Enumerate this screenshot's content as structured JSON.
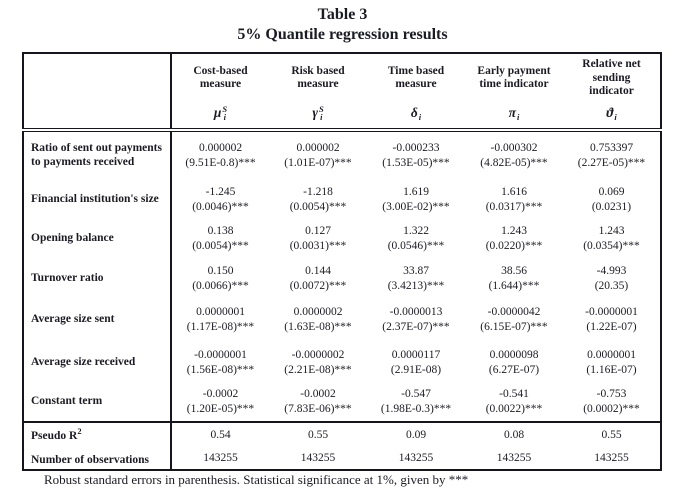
{
  "page": {
    "title_line1": "Table 3",
    "title_line2": "5% Quantile regression results",
    "footnote": "Robust standard errors in parenthesis. Statistical significance at 1%, given by ***"
  },
  "columns": [
    {
      "name": "Cost-based measure",
      "sym": "μ",
      "sup": "S",
      "sub": "i"
    },
    {
      "name": "Risk based measure",
      "sym": "γ",
      "sup": "S",
      "sub": "i"
    },
    {
      "name": "Time based measure",
      "sym": "δ",
      "sup": "",
      "sub": "i"
    },
    {
      "name": "Early payment time indicator",
      "sym": "π",
      "sup": "",
      "sub": "i"
    },
    {
      "name": "Relative net sending indicator",
      "sym": "ϑ",
      "sup": "",
      "sub": "i"
    }
  ],
  "rows": [
    {
      "label": "Ratio of sent out payments to payments received",
      "cells": [
        {
          "v": "0.000002",
          "se": "(9.51E-0.8)***"
        },
        {
          "v": "0.000002",
          "se": "(1.01E-07)***"
        },
        {
          "v": "-0.000233",
          "se": "(1.53E-05)***"
        },
        {
          "v": "-0.000302",
          "se": "(4.82E-05)***"
        },
        {
          "v": "0.753397",
          "se": "(2.27E-05)***"
        }
      ]
    },
    {
      "label": "Financial institution's size",
      "cells": [
        {
          "v": "-1.245",
          "se": "(0.0046)***"
        },
        {
          "v": "-1.218",
          "se": "(0.0054)***"
        },
        {
          "v": "1.619",
          "se": "(3.00E-02)***"
        },
        {
          "v": "1.616",
          "se": "(0.0317)***"
        },
        {
          "v": "0.069",
          "se": "(0.0231)"
        }
      ]
    },
    {
      "label": "Opening balance",
      "cells": [
        {
          "v": "0.138",
          "se": "(0.0054)***"
        },
        {
          "v": "0.127",
          "se": "(0.0031)***"
        },
        {
          "v": "1.322",
          "se": "(0.0546)***"
        },
        {
          "v": "1.243",
          "se": "(0.0220)***"
        },
        {
          "v": "1.243",
          "se": "(0.0354)***"
        }
      ]
    },
    {
      "label": "Turnover ratio",
      "cells": [
        {
          "v": "0.150",
          "se": "(0.0066)***"
        },
        {
          "v": "0.144",
          "se": "(0.0072)***"
        },
        {
          "v": "33.87",
          "se": "(3.4213)***"
        },
        {
          "v": "38.56",
          "se": "(1.644)***"
        },
        {
          "v": "-4.993",
          "se": "(20.35)"
        }
      ]
    },
    {
      "label": "Average size sent",
      "cells": [
        {
          "v": "0.0000001",
          "se": "(1.17E-08)***"
        },
        {
          "v": "0.0000002",
          "se": "(1.63E-08)***"
        },
        {
          "v": "-0.0000013",
          "se": "(2.37E-07)***"
        },
        {
          "v": "-0.0000042",
          "se": "(6.15E-07)***"
        },
        {
          "v": "-0.0000001",
          "se": "(1.22E-07)"
        }
      ]
    },
    {
      "label": "Average size received",
      "cells": [
        {
          "v": "-0.0000001",
          "se": "(1.56E-08)***"
        },
        {
          "v": "-0.0000002",
          "se": "(2.21E-08)***"
        },
        {
          "v": "0.0000117",
          "se": "(2.91E-08)"
        },
        {
          "v": "0.0000098",
          "se": "(6.27E-07)"
        },
        {
          "v": "0.0000001",
          "se": "(1.16E-07)"
        }
      ]
    },
    {
      "label": "Constant term",
      "cells": [
        {
          "v": "-0.0002",
          "se": "(1.20E-05)***"
        },
        {
          "v": "-0.0002",
          "se": "(7.83E-06)***"
        },
        {
          "v": "-0.547",
          "se": "(1.98E-0.3)***"
        },
        {
          "v": "-0.541",
          "se": "(0.0022)***"
        },
        {
          "v": "-0.753",
          "se": "(0.0002)***"
        }
      ]
    }
  ],
  "stats": [
    {
      "label_base": "Pseudo R",
      "label_sup": "2",
      "values": [
        "0.54",
        "0.55",
        "0.09",
        "0.08",
        "0.55"
      ]
    },
    {
      "label_base": "Number of observations",
      "label_sup": "",
      "values": [
        "143255",
        "143255",
        "143255",
        "143255",
        "143255"
      ]
    }
  ]
}
